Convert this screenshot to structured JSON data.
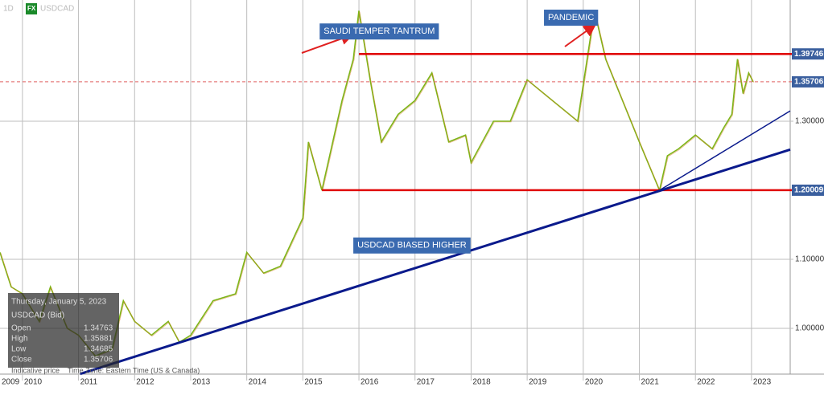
{
  "chart_data": {
    "type": "line",
    "interval": "1D",
    "badge": "FX",
    "x_start_label": "2009",
    "x": [
      2009.6,
      2009.8,
      2010.0,
      2010.3,
      2010.5,
      2010.8,
      2011.0,
      2011.3,
      2011.6,
      2011.8,
      2012.0,
      2012.3,
      2012.6,
      2012.8,
      2013.0,
      2013.4,
      2013.8,
      2014.0,
      2014.3,
      2014.6,
      2015.0,
      2015.1,
      2015.34,
      2015.7,
      2015.9,
      2016.0,
      2016.2,
      2016.4,
      2016.7,
      2017.0,
      2017.3,
      2017.6,
      2017.9,
      2018.0,
      2018.4,
      2018.7,
      2019.0,
      2019.3,
      2019.6,
      2019.9,
      2020.2,
      2020.4,
      2020.7,
      2021.0,
      2021.36,
      2021.5,
      2021.7,
      2022.0,
      2022.3,
      2022.5,
      2022.65,
      2022.75,
      2022.85,
      2022.95,
      2023.03
    ],
    "series": [
      {
        "name": "USDCAD",
        "color": "#7cb518",
        "values": [
          1.11,
          1.06,
          1.05,
          1.01,
          1.06,
          1.0,
          0.99,
          0.96,
          0.97,
          1.04,
          1.01,
          0.99,
          1.01,
          0.98,
          0.99,
          1.04,
          1.05,
          1.11,
          1.08,
          1.09,
          1.16,
          1.27,
          1.2,
          1.33,
          1.39,
          1.46,
          1.36,
          1.27,
          1.31,
          1.33,
          1.37,
          1.27,
          1.28,
          1.24,
          1.3,
          1.3,
          1.36,
          1.34,
          1.32,
          1.3,
          1.46,
          1.39,
          1.33,
          1.27,
          1.2,
          1.25,
          1.26,
          1.28,
          1.26,
          1.29,
          1.31,
          1.39,
          1.34,
          1.37,
          1.35706
        ]
      }
    ],
    "levels": [
      {
        "value": 1.39746,
        "color": "#e00000",
        "start": 2016.0
      },
      {
        "value": 1.35706,
        "color": "#e06060",
        "start": 2009.6
      },
      {
        "value": 1.20009,
        "color": "#e00000",
        "start": 2015.34
      }
    ],
    "trendlines": [
      {
        "color": "#0a1a8c",
        "x": [
          2011.03,
          2023.69
        ],
        "values": [
          0.934,
          1.259
        ]
      },
      {
        "color": "#0a1a8c",
        "x": [
          2021.36,
          2023.69
        ],
        "values": [
          1.2,
          1.315
        ]
      }
    ],
    "annotations": [
      {
        "text": "SAUDI TEMPER TANTRUM",
        "x": 2015.3,
        "y": 1.43
      },
      {
        "text": "PANDEMIC",
        "x": 2019.3,
        "y": 1.45
      },
      {
        "text": "USDCAD BIASED HIGHER",
        "x": 2015.9,
        "y": 1.12
      }
    ],
    "xlim": [
      2009.6,
      2023.69
    ],
    "ylim": [
      0.9337,
      1.4756
    ],
    "xticks": [
      2010,
      2011,
      2012,
      2013,
      2014,
      2015,
      2016,
      2017,
      2018,
      2019,
      2020,
      2021,
      2022,
      2023
    ],
    "yticks": [
      {
        "value": 1.0,
        "label": "1.00000"
      },
      {
        "value": 1.1,
        "label": "1.10000"
      },
      {
        "value": 1.3,
        "label": "1.30000"
      }
    ],
    "grid": true,
    "info": {
      "date": "Thursday, January 5, 2023",
      "symbol": "USDCAD (Bid)",
      "rows": [
        {
          "label": "Open",
          "value": 1.34763
        },
        {
          "label": "High",
          "value": 1.35881
        },
        {
          "label": "Low",
          "value": 1.34685
        },
        {
          "label": "Close",
          "value": 1.35706
        }
      ]
    },
    "footer": [
      "Indicative price",
      "Time Zone: Eastern Time (US & Canada)"
    ]
  }
}
